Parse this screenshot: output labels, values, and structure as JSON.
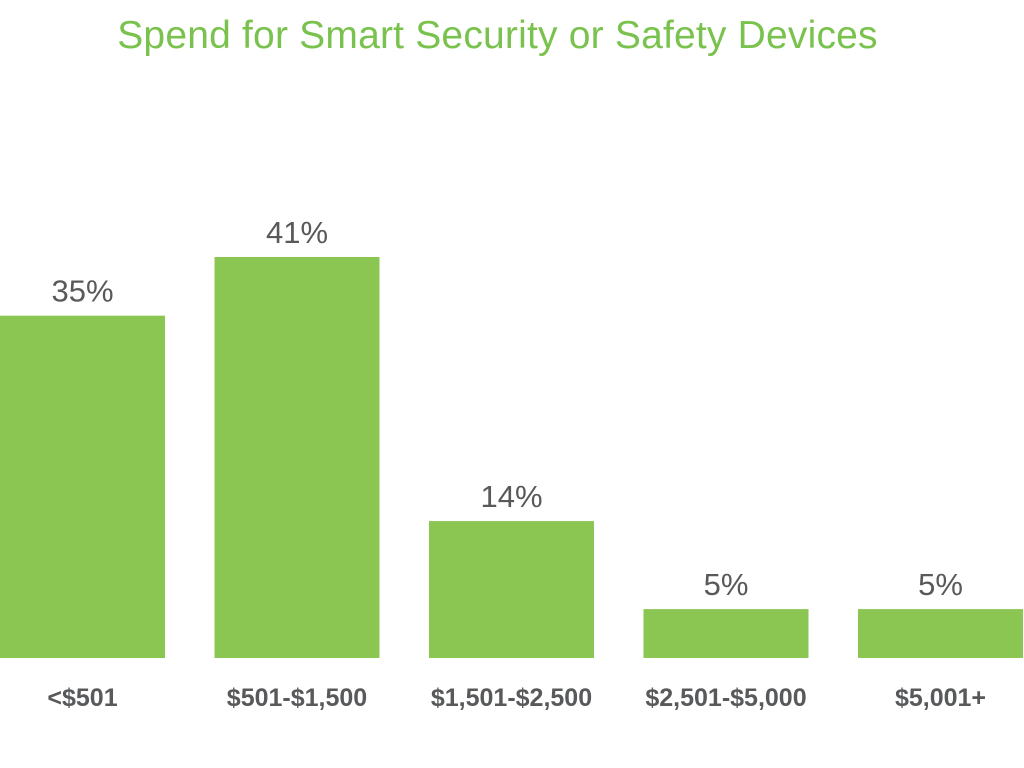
{
  "colors": {
    "bar": "#8bc653",
    "title": "#7ac24e",
    "label": "#58595b",
    "background": "#ffffff"
  },
  "chart_data": {
    "type": "bar",
    "title": "Spend for Smart Security or Safety Devices",
    "xlabel": "",
    "ylabel": "",
    "categories": [
      "<$501",
      "$501-$1,500",
      "$1,501-$2,500",
      "$2,501-$5,000",
      "$5,001+"
    ],
    "values": [
      35,
      41,
      14,
      5,
      5
    ],
    "value_labels": [
      "35%",
      "41%",
      "14%",
      "5%",
      "5%"
    ],
    "unit": "%",
    "ylim": [
      0,
      41
    ],
    "grid": false,
    "legend": "none"
  }
}
